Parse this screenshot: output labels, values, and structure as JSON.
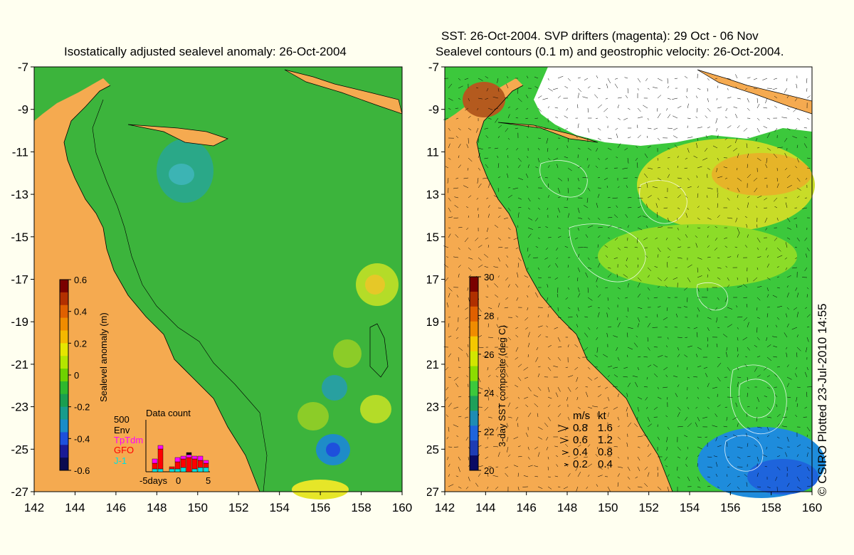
{
  "left_panel": {
    "title": "Isostatically adjusted sealevel anomaly: 26-Oct-2004",
    "y_ticks": [
      "-7",
      "-9",
      "-11",
      "-13",
      "-15",
      "-17",
      "-19",
      "-21",
      "-23",
      "-25",
      "-27"
    ],
    "x_ticks": [
      "142",
      "144",
      "146",
      "148",
      "150",
      "152",
      "154",
      "156",
      "158",
      "160"
    ],
    "colorbar": {
      "label": "Sealevel anomaly (m)",
      "ticks": [
        "0.6",
        "0.4",
        "0.2",
        "0",
        "-0.2",
        "-0.4",
        "-0.6"
      ],
      "colors": [
        "#7a0000",
        "#b33000",
        "#e06000",
        "#f08c00",
        "#f5b800",
        "#e6e600",
        "#b4e600",
        "#6ed200",
        "#2eb82e",
        "#1a9e50",
        "#189c8c",
        "#1a8cc8",
        "#1e50dc",
        "#1a1a96",
        "#0a0a50"
      ]
    },
    "data_count": {
      "title": "Data count",
      "max_label": "500",
      "legend": [
        {
          "label": "Env",
          "color": "#000000"
        },
        {
          "label": "TpTdm",
          "color": "#ff00ff"
        },
        {
          "label": "GFO",
          "color": "#ff0000"
        },
        {
          "label": "J-1",
          "color": "#00e0e0"
        }
      ],
      "x_labels": [
        "-5days",
        "0",
        "5"
      ]
    },
    "colors": {
      "land": "#f5aa50",
      "ocean": "#3cb43c",
      "ocean_light": "#5ac832"
    }
  },
  "right_panel": {
    "title_line1": "SST: 26-Oct-2004. SVP drifters (magenta): 29 Oct - 06 Nov",
    "title_line2": "Sealevel contours (0.1 m) and geostrophic velocity: 26-Oct-2004.",
    "y_ticks": [
      "-7",
      "-9",
      "-11",
      "-13",
      "-15",
      "-17",
      "-19",
      "-21",
      "-23",
      "-25",
      "-27"
    ],
    "x_ticks": [
      "142",
      "144",
      "146",
      "148",
      "150",
      "152",
      "154",
      "156",
      "158",
      "160"
    ],
    "colorbar": {
      "label": "3-day SST composite (deg C)",
      "ticks": [
        "30",
        "28",
        "26",
        "24",
        "22",
        "20"
      ],
      "colors": [
        "#7a0000",
        "#b03000",
        "#e06000",
        "#f08c00",
        "#f5c800",
        "#d2e600",
        "#8cdc00",
        "#3cc83c",
        "#1ea05a",
        "#1e8cb4",
        "#1e64dc",
        "#1e3cb4",
        "#0a0a64"
      ]
    },
    "velocity_legend": {
      "header_ms": "m/s",
      "header_kt": "kt",
      "rows": [
        {
          "ms": "0.8",
          "kt": "1.6"
        },
        {
          "ms": "0.6",
          "kt": "1.2"
        },
        {
          "ms": "0.4",
          "kt": "0.8"
        },
        {
          "ms": "0.2",
          "kt": "0.4"
        }
      ]
    },
    "colors": {
      "land": "#f5aa50",
      "cloud": "#ffffff",
      "warm": "#e6c828",
      "cool": "#1e8cdc"
    }
  },
  "copyright": "© CSIRO Plotted 23-Jul-2010 14:55"
}
